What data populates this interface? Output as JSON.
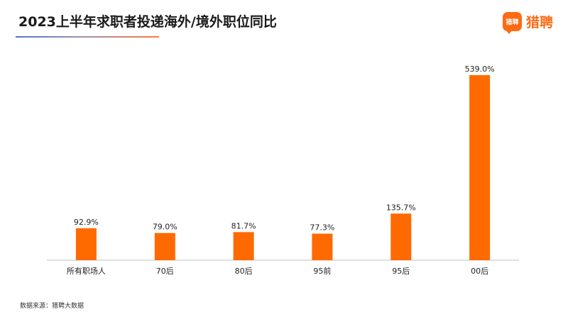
{
  "header": {
    "title": "2023上半年求职者投递海外/境外职位同比"
  },
  "logo": {
    "badge_text": "猎聘",
    "text": "猎聘",
    "color": "#ff6a13"
  },
  "footer": {
    "source": "数据来源：猎聘大数据"
  },
  "chart_data": {
    "type": "bar",
    "title": "2023上半年求职者投递海外/境外职位同比",
    "xlabel": "",
    "ylabel": "",
    "categories": [
      "所有职场人",
      "70后",
      "80后",
      "95前",
      "95后",
      "00后"
    ],
    "values": [
      92.9,
      79.0,
      81.7,
      77.3,
      135.7,
      539.0
    ],
    "data_labels": [
      "92.9%",
      "79.0%",
      "81.7%",
      "77.3%",
      "135.7%",
      "539.0%"
    ],
    "ylim": [
      0,
      539.0
    ],
    "grid": false,
    "bar_color": "#ff6a00",
    "axis_color": "#bfbfbf"
  }
}
